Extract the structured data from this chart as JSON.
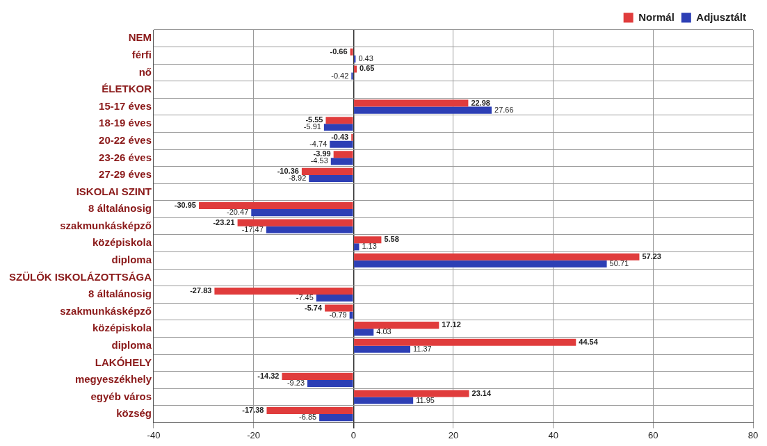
{
  "chart_data": {
    "type": "bar",
    "orientation": "horizontal",
    "categories": [
      "NEM",
      "férfi",
      "nő",
      "ÉLETKOR",
      "15-17 éves",
      "18-19 éves",
      "20-22 éves",
      "23-26 éves",
      "27-29 éves",
      "ISKOLAI SZINT",
      "8 általánosig",
      "szakmunkásképző",
      "középiskola",
      "diploma",
      "SZÜLŐK ISKOLÁZOTTSÁGA",
      "8 általánosig",
      "szakmunkásképző",
      "középiskola",
      "diploma",
      "LAKÓHELY",
      "megyeszékhely",
      "egyéb város",
      "község"
    ],
    "series": [
      {
        "name": "Normál",
        "color": "#e03c3c",
        "values": [
          null,
          -0.66,
          0.65,
          null,
          22.98,
          -5.55,
          -0.43,
          -3.99,
          -10.36,
          null,
          -30.95,
          -23.21,
          5.58,
          57.23,
          null,
          -27.83,
          -5.74,
          17.12,
          44.54,
          null,
          -14.32,
          23.14,
          -17.38
        ]
      },
      {
        "name": "Adjusztált",
        "color": "#2d3fb5",
        "values": [
          null,
          0.43,
          -0.42,
          null,
          27.66,
          -5.91,
          -4.74,
          -4.53,
          -8.92,
          null,
          -20.47,
          -17.47,
          1.13,
          50.71,
          null,
          -7.45,
          -0.79,
          4.03,
          11.37,
          null,
          -9.23,
          11.95,
          -6.85
        ]
      }
    ],
    "xlim": [
      -40,
      80
    ],
    "xticks": [
      -40,
      -20,
      0,
      20,
      40,
      60,
      80
    ],
    "grid": true,
    "legend": "top right",
    "data_labels": true
  }
}
